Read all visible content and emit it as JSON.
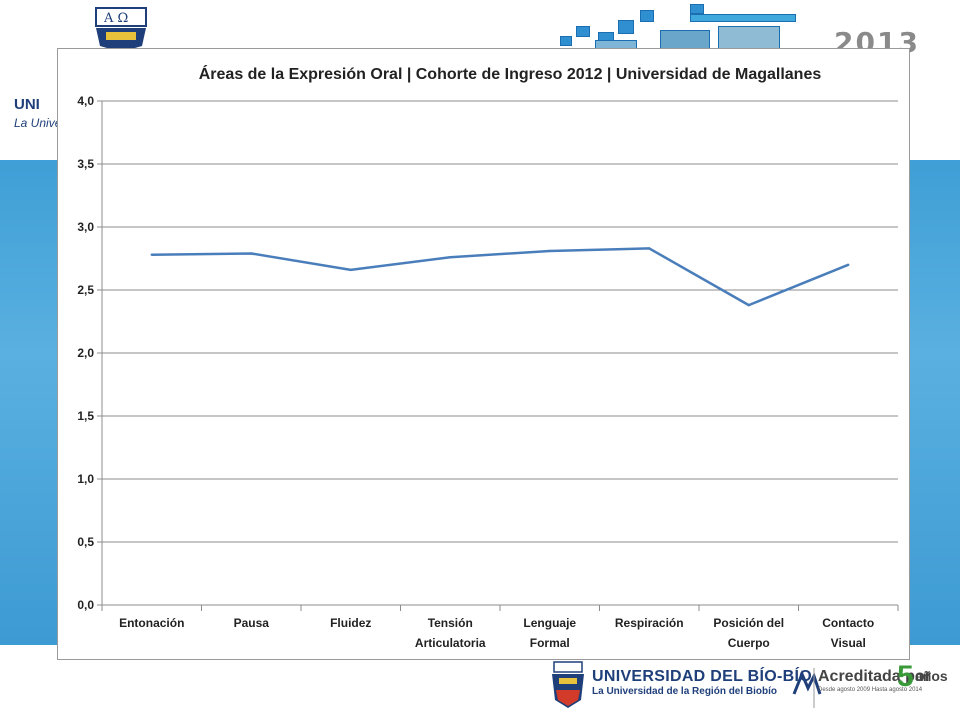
{
  "header": {
    "year": "2013",
    "left_org_line1": "UNI",
    "left_org_line2": "La Unive"
  },
  "footer": {
    "university_name": "UNIVERSIDAD DEL BÍO-BÍO",
    "university_tagline": "La Universidad de la Región del Biobío",
    "accreditation_label": "Acreditada por",
    "accreditation_years": "5",
    "accreditation_unit": "años",
    "accreditation_detail": "Desde agosto 2009 Hasta agosto 2014"
  },
  "chart_data": {
    "type": "line",
    "title": "Áreas de la Expresión Oral | Cohorte de Ingreso 2012 | Universidad de Magallanes",
    "categories": [
      [
        "Entonación"
      ],
      [
        "Pausa"
      ],
      [
        "Fluidez"
      ],
      [
        "Tensión",
        "Articulatoria"
      ],
      [
        "Lenguaje",
        "Formal"
      ],
      [
        "Respiración"
      ],
      [
        "Posición del",
        "Cuerpo"
      ],
      [
        "Contacto",
        "Visual"
      ]
    ],
    "values": [
      2.78,
      2.79,
      2.66,
      2.76,
      2.81,
      2.83,
      2.38,
      2.7
    ],
    "ylim": [
      0,
      4
    ],
    "yticks": [
      "0,0",
      "0,5",
      "1,0",
      "1,5",
      "2,0",
      "2,5",
      "3,0",
      "3,5",
      "4,0"
    ],
    "grid": true,
    "legend": "none",
    "line_color": "#4a7ebb"
  }
}
